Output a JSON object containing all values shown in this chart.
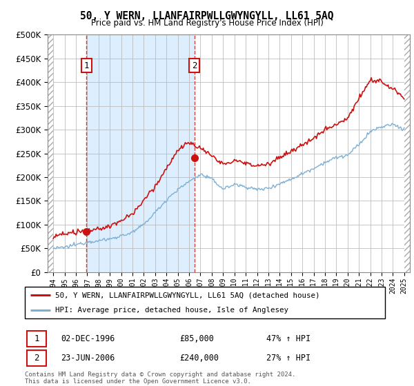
{
  "title": "50, Y WERN, LLANFAIRPWLLGWYNGYLL, LL61 5AQ",
  "subtitle": "Price paid vs. HM Land Registry's House Price Index (HPI)",
  "legend_line1": "50, Y WERN, LLANFAIRPWLLGWYNGYLL, LL61 5AQ (detached house)",
  "legend_line2": "HPI: Average price, detached house, Isle of Anglesey",
  "footer": "Contains HM Land Registry data © Crown copyright and database right 2024.\nThis data is licensed under the Open Government Licence v3.0.",
  "sale1_label": "1",
  "sale1_date": "02-DEC-1996",
  "sale1_price": "£85,000",
  "sale1_hpi": "47% ↑ HPI",
  "sale2_label": "2",
  "sale2_date": "23-JUN-2006",
  "sale2_price": "£240,000",
  "sale2_hpi": "27% ↑ HPI",
  "sale1_x": 1996.92,
  "sale1_y": 85000,
  "sale2_x": 2006.48,
  "sale2_y": 240000,
  "hpi_color": "#7bafd4",
  "price_color": "#cc1111",
  "shade_color": "#ddeeff",
  "ylim": [
    0,
    500000
  ],
  "xlim_start": 1993.5,
  "xlim_end": 2025.5,
  "yticks": [
    0,
    50000,
    100000,
    150000,
    200000,
    250000,
    300000,
    350000,
    400000,
    450000,
    500000
  ],
  "xticks": [
    1994,
    1995,
    1996,
    1997,
    1998,
    1999,
    2000,
    2001,
    2002,
    2003,
    2004,
    2005,
    2006,
    2007,
    2008,
    2009,
    2010,
    2011,
    2012,
    2013,
    2014,
    2015,
    2016,
    2017,
    2018,
    2019,
    2020,
    2021,
    2022,
    2023,
    2024,
    2025
  ],
  "hpi_base": {
    "1994.0": 50000,
    "1995.0": 52000,
    "1996.0": 56000,
    "1997.0": 60000,
    "1998.0": 64000,
    "1999.0": 68000,
    "2000.0": 74000,
    "2001.0": 82000,
    "2002.0": 100000,
    "2003.0": 125000,
    "2004.0": 152000,
    "2005.0": 172000,
    "2006.0": 190000,
    "2007.0": 205000,
    "2008.0": 195000,
    "2009.0": 175000,
    "2010.0": 182000,
    "2011.0": 178000,
    "2012.0": 172000,
    "2013.0": 175000,
    "2014.0": 185000,
    "2015.0": 195000,
    "2016.0": 205000,
    "2017.0": 218000,
    "2018.0": 230000,
    "2019.0": 240000,
    "2020.0": 245000,
    "2021.0": 268000,
    "2022.0": 295000,
    "2023.0": 305000,
    "2024.0": 310000,
    "2025.0": 300000
  },
  "price_base": {
    "1994.0": 75000,
    "1995.0": 78000,
    "1996.0": 82000,
    "1997.0": 88000,
    "1998.0": 95000,
    "1999.0": 102000,
    "2000.0": 115000,
    "2001.0": 130000,
    "2002.0": 158000,
    "2003.0": 192000,
    "2004.0": 230000,
    "2005.0": 268000,
    "2006.0": 280000,
    "2007.0": 270000,
    "2008.0": 250000,
    "2009.0": 228000,
    "2010.0": 238000,
    "2011.0": 232000,
    "2012.0": 228000,
    "2013.0": 232000,
    "2014.0": 245000,
    "2015.0": 258000,
    "2016.0": 272000,
    "2017.0": 288000,
    "2018.0": 305000,
    "2019.0": 318000,
    "2020.0": 328000,
    "2021.0": 370000,
    "2022.0": 410000,
    "2023.0": 405000,
    "2024.0": 390000,
    "2025.0": 370000
  }
}
